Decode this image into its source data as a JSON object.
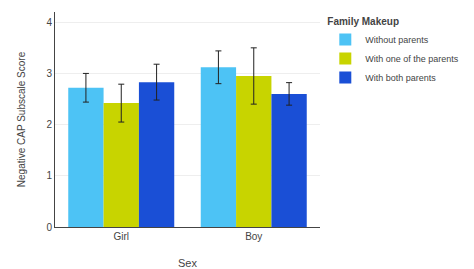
{
  "chart_data": {
    "type": "bar",
    "xlabel": "Sex",
    "ylabel": "Negative CAP Subscale Score",
    "legend_title": "Family Makeup",
    "categories": [
      "Girl",
      "Boy"
    ],
    "series": [
      {
        "name": "Without parents",
        "color": "#4DC3F5",
        "values": [
          2.72,
          3.12
        ],
        "errors": [
          0.28,
          0.32
        ]
      },
      {
        "name": "With one of the parents",
        "color": "#C8D400",
        "values": [
          2.42,
          2.95
        ],
        "errors": [
          0.37,
          0.55
        ]
      },
      {
        "name": "With both parents",
        "color": "#1A4FD6",
        "values": [
          2.83,
          2.6
        ],
        "errors": [
          0.35,
          0.22
        ]
      }
    ],
    "ylim": [
      0,
      4.2
    ],
    "yticks": [
      0,
      1,
      2,
      3,
      4
    ],
    "grid": true,
    "legend": "upper right"
  }
}
